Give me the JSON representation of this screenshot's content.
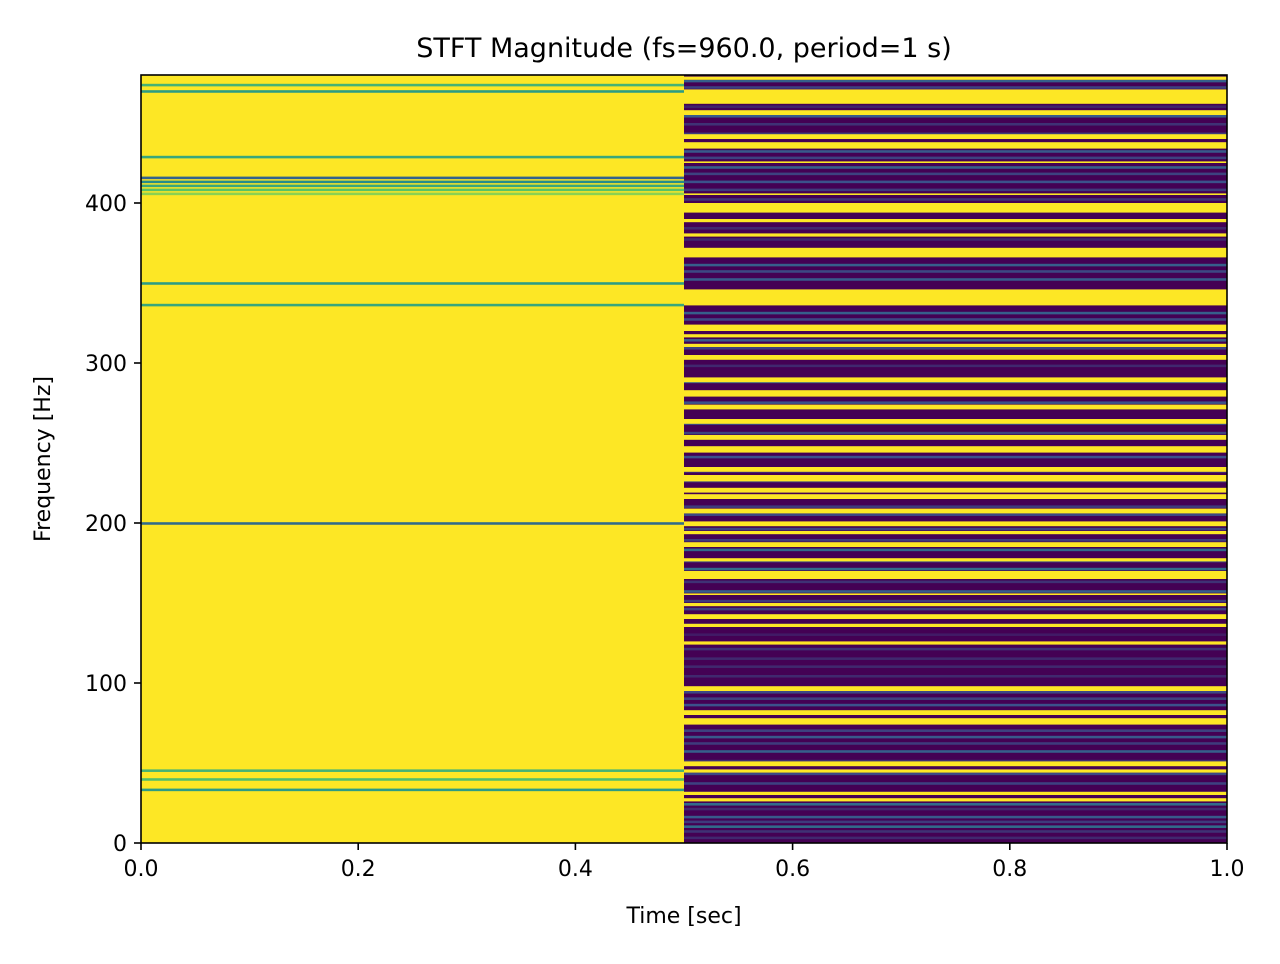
{
  "chart_data": {
    "type": "heatmap",
    "title": "STFT Magnitude (fs=960.0, period=1 s)",
    "xlabel": "Time [sec]",
    "ylabel": "Frequency [Hz]",
    "xlim": [
      0.0,
      1.0
    ],
    "ylim": [
      0,
      480
    ],
    "x_ticks": [
      0.0,
      0.2,
      0.4,
      0.6,
      0.8,
      1.0
    ],
    "x_tick_labels": [
      "0.0",
      "0.2",
      "0.4",
      "0.6",
      "0.8",
      "1.0"
    ],
    "y_ticks": [
      0,
      100,
      200,
      300,
      400
    ],
    "y_tick_labels": [
      "0",
      "100",
      "200",
      "300",
      "400"
    ],
    "colormap": "viridis",
    "segments": [
      {
        "t_start": 0.0,
        "t_end": 0.5,
        "base_level": 1.0,
        "bands": [
          {
            "f": 33,
            "level": 0.55
          },
          {
            "f": 39.5,
            "level": 0.7
          },
          {
            "f": 45,
            "level": 0.65
          },
          {
            "f": 199.5,
            "level": 0.35
          },
          {
            "f": 336,
            "level": 0.6
          },
          {
            "f": 349.5,
            "level": 0.55
          },
          {
            "f": 405.5,
            "level": 0.82
          },
          {
            "f": 408,
            "level": 0.72
          },
          {
            "f": 410.5,
            "level": 0.6
          },
          {
            "f": 413,
            "level": 0.48
          },
          {
            "f": 415.5,
            "level": 0.32
          },
          {
            "f": 428.5,
            "level": 0.6
          },
          {
            "f": 469.5,
            "level": 0.55
          },
          {
            "f": 473.5,
            "level": 0.65
          }
        ]
      },
      {
        "t_start": 0.5,
        "t_end": 1.0,
        "base_level": 0.0,
        "bands": [
          {
            "f": 3,
            "level": 0.12
          },
          {
            "f": 7,
            "level": 0.15
          },
          {
            "f": 10,
            "level": 0.35
          },
          {
            "f": 13,
            "level": 0.18
          },
          {
            "f": 16,
            "level": 0.28
          },
          {
            "f": 21,
            "level": 0.12
          },
          {
            "f": 24,
            "level": 0.35
          },
          {
            "f": 31,
            "level": 0.32
          },
          {
            "f": 37,
            "level": 0.2
          },
          {
            "f": 43,
            "level": 0.22
          },
          {
            "f": 51,
            "level": 0.14
          },
          {
            "f": 57,
            "level": 0.3
          },
          {
            "f": 62,
            "level": 0.18
          },
          {
            "f": 66,
            "level": 0.28
          },
          {
            "f": 70,
            "level": 0.2
          },
          {
            "f": 86,
            "level": 0.25
          },
          {
            "f": 90,
            "level": 0.2
          },
          {
            "f": 94,
            "level": 0.22
          },
          {
            "f": 104,
            "level": 0.12
          },
          {
            "f": 110,
            "level": 0.12
          },
          {
            "f": 115,
            "level": 0.12
          },
          {
            "f": 121,
            "level": 0.15
          },
          {
            "f": 130,
            "level": 0.08
          },
          {
            "f": 136,
            "level": 0.32
          },
          {
            "f": 146,
            "level": 0.2
          },
          {
            "f": 151,
            "level": 0.18
          },
          {
            "f": 157,
            "level": 0.3
          },
          {
            "f": 163,
            "level": 0.15
          },
          {
            "f": 171,
            "level": 0.35
          },
          {
            "f": 176,
            "level": 0.22
          },
          {
            "f": 183,
            "level": 0.35
          },
          {
            "f": 189,
            "level": 0.18
          },
          {
            "f": 196,
            "level": 0.2
          },
          {
            "f": 205,
            "level": 0.22
          },
          {
            "f": 210,
            "level": 0.18
          },
          {
            "f": 216,
            "level": 0.3
          },
          {
            "f": 226,
            "level": 0.2
          },
          {
            "f": 232,
            "level": 0.15
          },
          {
            "f": 241,
            "level": 0.25
          },
          {
            "f": 246,
            "level": 0.18
          },
          {
            "f": 256,
            "level": 0.2
          },
          {
            "f": 262,
            "level": 0.28
          },
          {
            "f": 275,
            "level": 0.25
          },
          {
            "f": 281,
            "level": 0.18
          },
          {
            "f": 288,
            "level": 0.3
          },
          {
            "f": 298,
            "level": 0.12
          },
          {
            "f": 303,
            "level": 0.15
          },
          {
            "f": 309,
            "level": 0.2
          },
          {
            "f": 314,
            "level": 0.28
          },
          {
            "f": 322,
            "level": 0.2
          },
          {
            "f": 327,
            "level": 0.22
          },
          {
            "f": 331,
            "level": 0.3
          },
          {
            "f": 352,
            "level": 0.28
          },
          {
            "f": 357,
            "level": 0.22
          },
          {
            "f": 361,
            "level": 0.3
          },
          {
            "f": 377,
            "level": 0.12
          },
          {
            "f": 384,
            "level": 0.12
          },
          {
            "f": 396,
            "level": 0.22
          },
          {
            "f": 402,
            "level": 0.15
          },
          {
            "f": 408,
            "level": 0.18
          },
          {
            "f": 413,
            "level": 0.25
          },
          {
            "f": 418,
            "level": 0.2
          },
          {
            "f": 422,
            "level": 0.3
          },
          {
            "f": 428,
            "level": 0.2
          },
          {
            "f": 432,
            "level": 0.28
          },
          {
            "f": 443,
            "level": 0.18
          },
          {
            "f": 449,
            "level": 0.15
          },
          {
            "f": 454,
            "level": 0.28
          },
          {
            "f": 460,
            "level": 0.1
          },
          {
            "f": 465,
            "level": 0.25
          },
          {
            "f": 472,
            "level": 0.2
          },
          {
            "f": 476,
            "level": 0.3
          }
        ],
        "bright_bands": [
          [
            26,
            28
          ],
          [
            30,
            32
          ],
          [
            44,
            46
          ],
          [
            48,
            51
          ],
          [
            74,
            78
          ],
          [
            80,
            83
          ],
          [
            95,
            98
          ],
          [
            124,
            126
          ],
          [
            135,
            137
          ],
          [
            140,
            143
          ],
          [
            148,
            150
          ],
          [
            155,
            156
          ],
          [
            165,
            170
          ],
          [
            176,
            178
          ],
          [
            185,
            188
          ],
          [
            193,
            195
          ],
          [
            198,
            201
          ],
          [
            206,
            209
          ],
          [
            215,
            218
          ],
          [
            219,
            222
          ],
          [
            226,
            230
          ],
          [
            232,
            235
          ],
          [
            244,
            248
          ],
          [
            252,
            255
          ],
          [
            262,
            265
          ],
          [
            271,
            274
          ],
          [
            279,
            283
          ],
          [
            288,
            291
          ],
          [
            302,
            305
          ],
          [
            310,
            312
          ],
          [
            316,
            318
          ],
          [
            320,
            324
          ],
          [
            336,
            346
          ],
          [
            366,
            372
          ],
          [
            379,
            381
          ],
          [
            388,
            390
          ],
          [
            394,
            400
          ],
          [
            405,
            406
          ],
          [
            425,
            426
          ],
          [
            434,
            438
          ],
          [
            440,
            443
          ],
          [
            455,
            458
          ],
          [
            462,
            471
          ],
          [
            477,
            479
          ]
        ]
      }
    ]
  }
}
